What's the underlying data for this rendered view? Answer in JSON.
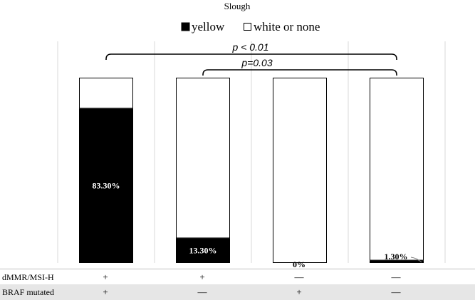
{
  "chart_data": {
    "type": "bar",
    "stacked": true,
    "normalized_percent": true,
    "title": "Slough",
    "legend": {
      "placement": "top-center",
      "entries": [
        {
          "name": "yellow",
          "color": "#000000"
        },
        {
          "name": "white or none",
          "color": "#ffffff"
        }
      ]
    },
    "categories_count": 4,
    "series": [
      {
        "name": "yellow",
        "color": "#000000",
        "values": [
          83.3,
          13.3,
          0,
          1.3
        ]
      },
      {
        "name": "white or none",
        "color": "#ffffff",
        "values": [
          16.7,
          86.7,
          100,
          98.7
        ]
      }
    ],
    "data_labels": [
      "83.30%",
      "13.30%",
      "0%",
      "1.30%"
    ],
    "ylim": [
      0,
      100
    ],
    "grid": {
      "vertical_separators": true,
      "color": "#d9d9d9"
    },
    "annotations": [
      {
        "text": "p < 0.01",
        "from_category": 0,
        "to_category": 3
      },
      {
        "text": "p=0.03",
        "from_category": 1,
        "to_category": 3
      }
    ],
    "table": {
      "rows": [
        {
          "label": "dMMR/MSI-H",
          "values": [
            "+",
            "+",
            "—",
            "—"
          ],
          "shaded": false
        },
        {
          "label": "BRAF mutated",
          "values": [
            "+",
            "—",
            "+",
            "—"
          ],
          "shaded": true
        }
      ]
    }
  }
}
